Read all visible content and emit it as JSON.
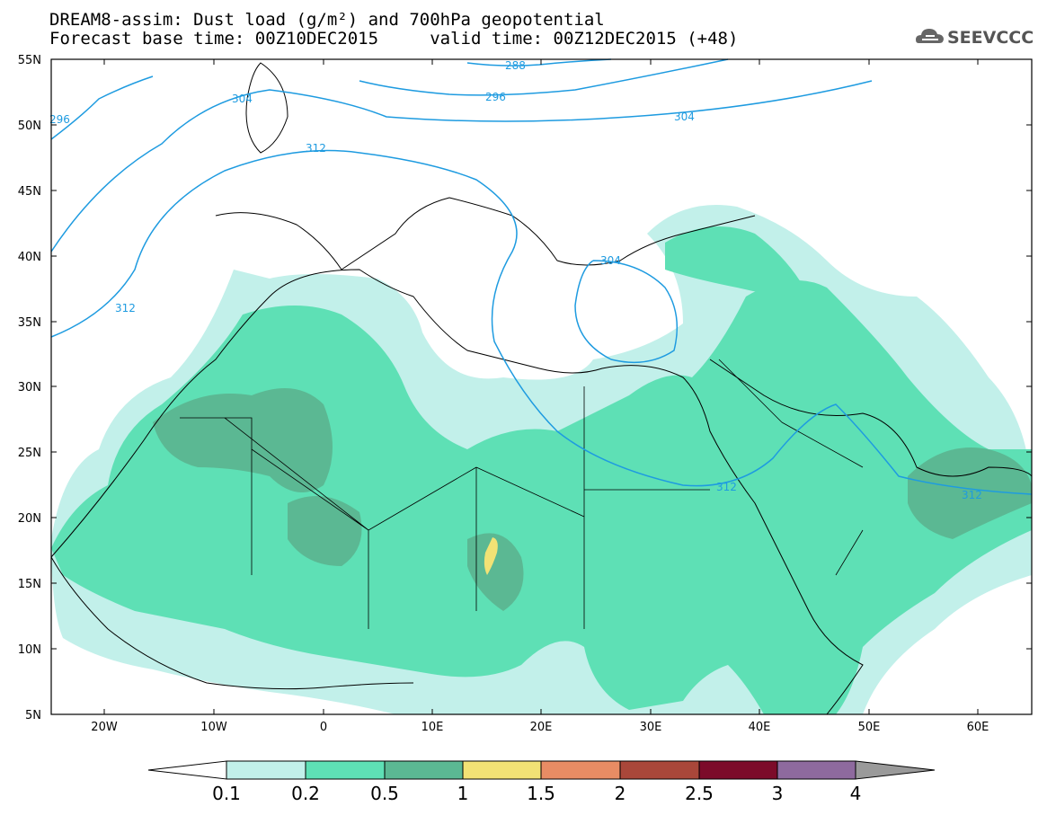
{
  "title": {
    "line1": "DREAM8-assim: Dust load (g/m²) and 700hPa geopotential",
    "line2": "Forecast base time: 00Z10DEC2015     valid time: 00Z12DEC2015 (+48)"
  },
  "logo": {
    "text": "SEEVCCC"
  },
  "axes": {
    "lat_labels": [
      "55N",
      "50N",
      "45N",
      "40N",
      "35N",
      "30N",
      "25N",
      "20N",
      "15N",
      "10N",
      "5N"
    ],
    "lon_labels": [
      "20W",
      "10W",
      "0",
      "10E",
      "20E",
      "30E",
      "40E",
      "50E",
      "60E"
    ]
  },
  "contour_labels": [
    "296",
    "304",
    "312",
    "288",
    "296",
    "304",
    "312",
    "304",
    "312",
    "312"
  ],
  "colorbar": {
    "colors": [
      "#ffffff",
      "#c2f0ea",
      "#5ee0b5",
      "#5bb893",
      "#f2e275",
      "#e88c64",
      "#a9473a",
      "#7c0b2a",
      "#8e6a9e",
      "#9a9a9a"
    ],
    "labels": [
      "0.1",
      "0.2",
      "0.5",
      "1",
      "1.5",
      "2",
      "2.5",
      "3",
      "4"
    ]
  },
  "colors": {
    "contour": "#1e9be0",
    "dust_light": "#c2f0ea",
    "dust_mid": "#5ee0b5",
    "dust_dark": "#5bb893",
    "dust_yellow": "#f2e275"
  }
}
